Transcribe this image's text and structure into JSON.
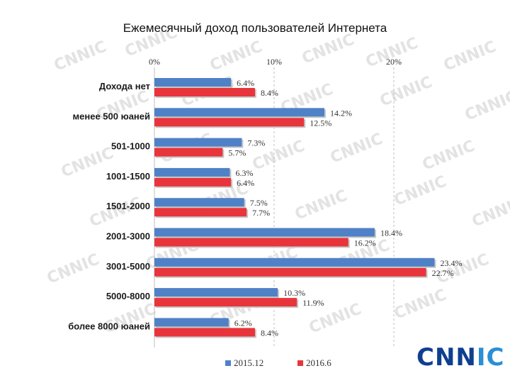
{
  "title": "Ежемесячный доход пользователей Интернета",
  "watermark_text": "CNNIC",
  "logo_text": "CNNIC",
  "colors": {
    "series1": "#4f81c7",
    "series2": "#e8353b",
    "grid": "#bfbfbf",
    "watermark": "#e3e3e3"
  },
  "chart_data": {
    "type": "bar",
    "orientation": "horizontal",
    "categories": [
      "Дохода нет",
      "менее 500 юаней",
      "501-1000",
      "1001-1500",
      "1501-2000",
      "2001-3000",
      "3001-5000",
      "5000-8000",
      "более 8000 юаней"
    ],
    "series": [
      {
        "name": "2015.12",
        "values": [
          6.4,
          14.2,
          7.3,
          6.3,
          7.5,
          18.4,
          23.4,
          10.3,
          6.2
        ],
        "labels": [
          "6.4%",
          "14.2%",
          "7.3%",
          "6.3%",
          "7.5%",
          "18.4%",
          "23.4%",
          "10.3%",
          "6.2%"
        ]
      },
      {
        "name": "2016.6",
        "values": [
          8.4,
          12.5,
          5.7,
          6.4,
          7.7,
          16.2,
          22.7,
          11.9,
          8.4
        ],
        "labels": [
          "8.4%",
          "12.5%",
          "5.7%",
          "6.4%",
          "7.7%",
          "16.2%",
          "22.7%",
          "11.9%",
          "8.4%"
        ]
      }
    ],
    "ticks": [
      0,
      10,
      20
    ],
    "tick_labels": [
      "0%",
      "10%",
      "20%"
    ],
    "xlim": [
      0,
      25
    ],
    "grid": "vertical dashed",
    "legend": "bottom"
  }
}
